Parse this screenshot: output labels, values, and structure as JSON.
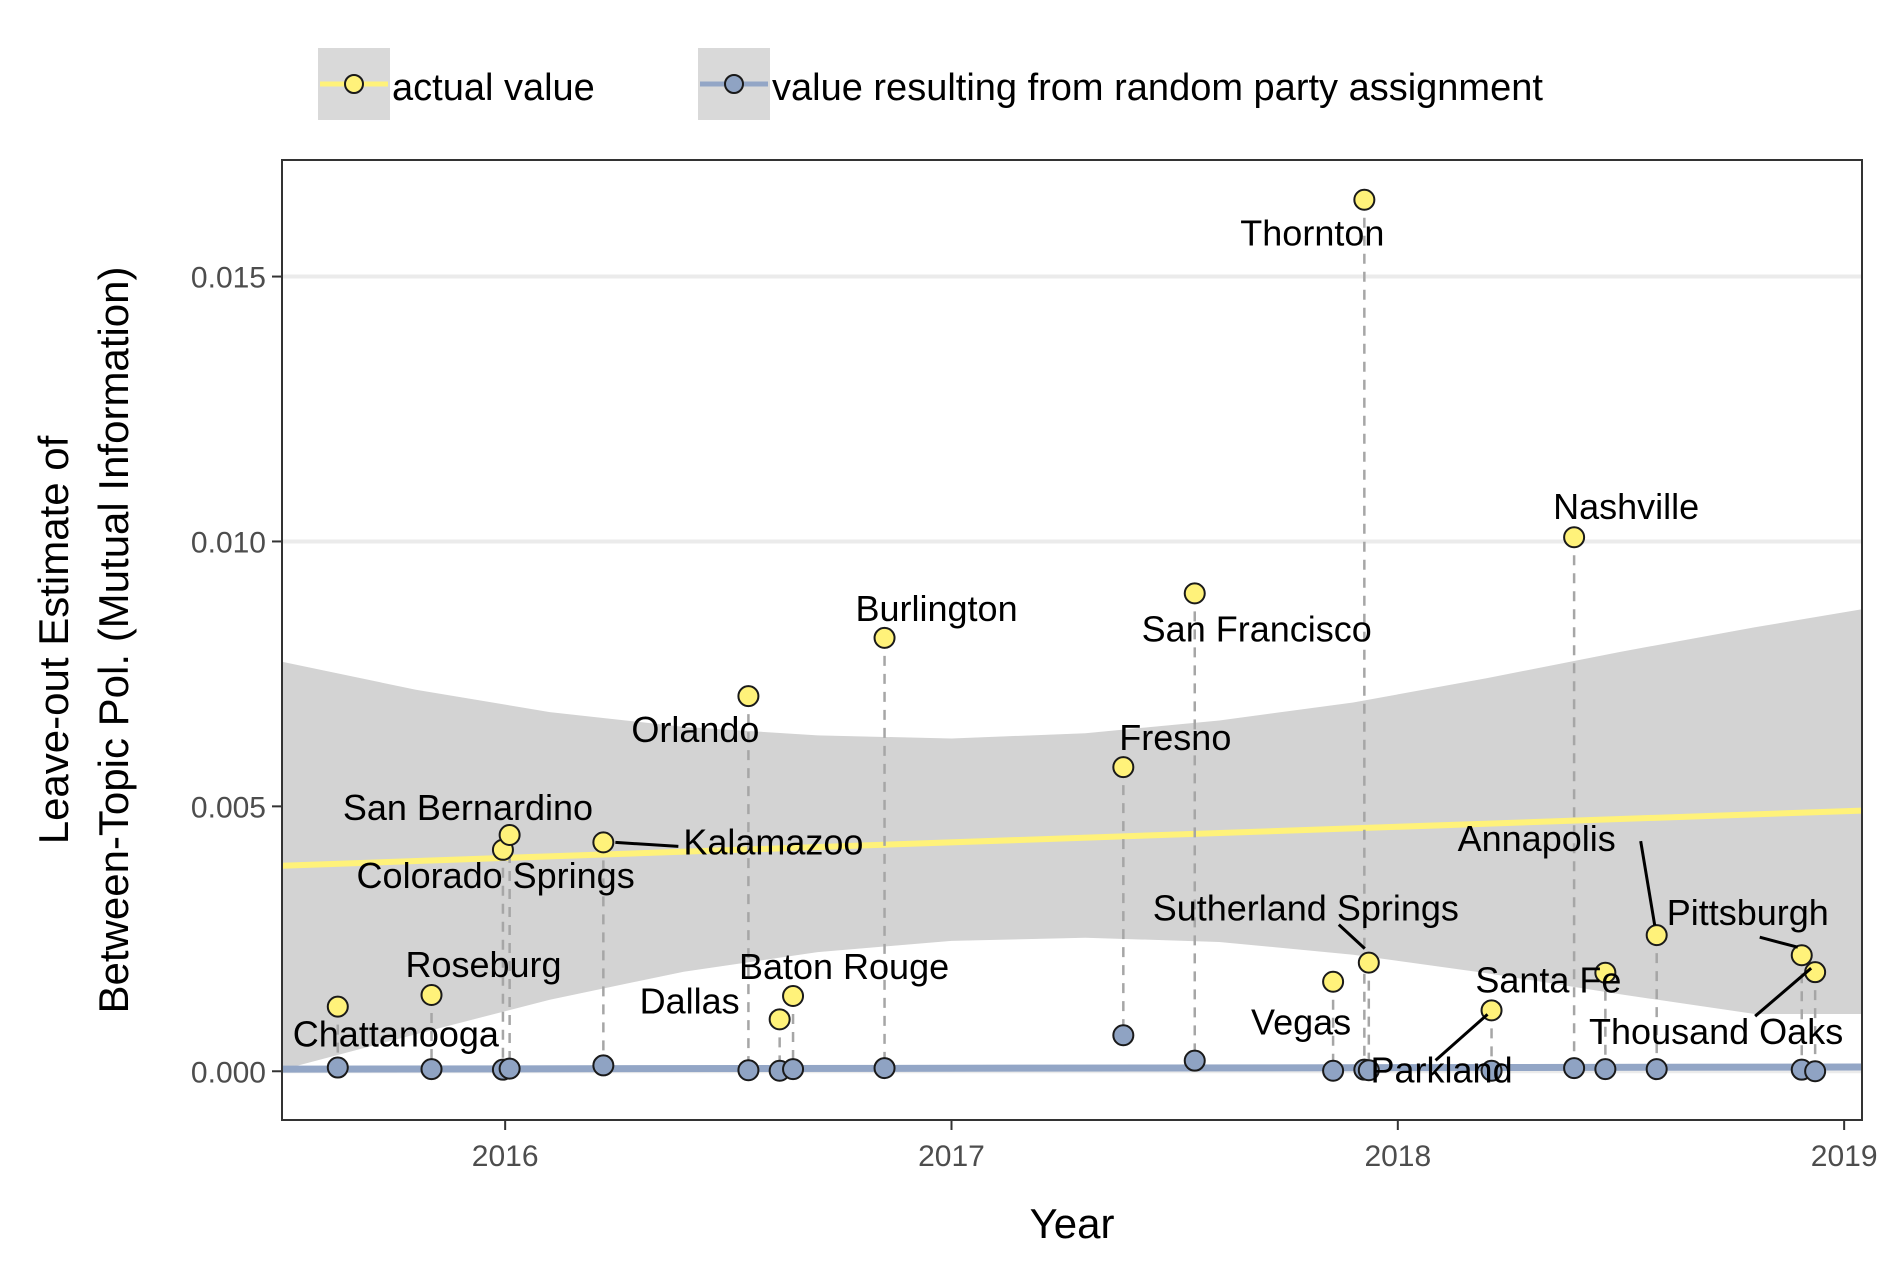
{
  "chart_data": {
    "type": "scatter",
    "title": "",
    "xlabel": "Year",
    "ylabel_lines": [
      "Leave-out Estimate of",
      "Between-Topic Pol. (Mutual Information)"
    ],
    "xlim": [
      2015.5,
      2019.04
    ],
    "ylim": [
      -0.00092,
      0.0172
    ],
    "x_ticks": [
      2016,
      2017,
      2018,
      2019
    ],
    "x_tick_labels": [
      "2016",
      "2017",
      "2018",
      "2019"
    ],
    "y_ticks": [
      0.0,
      0.005,
      0.01,
      0.015
    ],
    "y_tick_labels": [
      "0.000",
      "0.005",
      "0.010",
      "0.015"
    ],
    "grid": true,
    "legend_position": "top",
    "series": [
      {
        "name": "actual value",
        "color": "#fff27a",
        "line_color": "#fff27a"
      },
      {
        "name": "value resulting from random party assignment",
        "color": "#8fa3c3",
        "line_color": "#93a6c6"
      }
    ],
    "events": [
      {
        "label": "Chattanooga",
        "x": 2015.625,
        "actual": 0.00122,
        "random": 7e-05
      },
      {
        "label": "Roseburg",
        "x": 2015.835,
        "actual": 0.00144,
        "random": 4e-05
      },
      {
        "label": "San Bernardino",
        "x": 2015.995,
        "actual": 0.00418,
        "random": 3e-05
      },
      {
        "label": "Colorado Springs",
        "x": 2016.01,
        "actual": 0.00446,
        "random": 5e-05
      },
      {
        "label": "Kalamazoo",
        "x": 2016.22,
        "actual": 0.00432,
        "random": 0.00011
      },
      {
        "label": "Orlando",
        "x": 2016.545,
        "actual": 0.00708,
        "random": 2e-05
      },
      {
        "label": "Dallas",
        "x": 2016.615,
        "actual": 0.00098,
        "random": 1e-05
      },
      {
        "label": "Baton Rouge",
        "x": 2016.645,
        "actual": 0.00142,
        "random": 4e-05
      },
      {
        "label": "Burlington",
        "x": 2016.85,
        "actual": 0.00818,
        "random": 6e-05
      },
      {
        "label": "Fresno",
        "x": 2017.385,
        "actual": 0.00574,
        "random": 0.00068
      },
      {
        "label": "San Francisco",
        "x": 2017.545,
        "actual": 0.00902,
        "random": 0.0002
      },
      {
        "label": "Vegas",
        "x": 2017.855,
        "actual": 0.00169,
        "random": 1e-05
      },
      {
        "label": "Thornton",
        "x": 2017.925,
        "actual": 0.01645,
        "random": 3e-05
      },
      {
        "label": "Sutherland Springs",
        "x": 2017.935,
        "actual": 0.00205,
        "random": 2e-05
      },
      {
        "label": "Parkland",
        "x": 2018.21,
        "actual": 0.00115,
        "random": 1e-05
      },
      {
        "label": "Nashville",
        "x": 2018.395,
        "actual": 0.01008,
        "random": 6e-05
      },
      {
        "label": "Santa Fe",
        "x": 2018.465,
        "actual": 0.00186,
        "random": 4e-05
      },
      {
        "label": "Annapolis",
        "x": 2018.58,
        "actual": 0.00257,
        "random": 4e-05
      },
      {
        "label": "Pittsburgh",
        "x": 2018.905,
        "actual": 0.00219,
        "random": 3e-05
      },
      {
        "label": "Thousand Oaks",
        "x": 2018.935,
        "actual": 0.00187,
        "random": 0.0
      }
    ],
    "trend_actual": {
      "x": [
        2015.5,
        2019.04
      ],
      "y": [
        0.00388,
        0.00492
      ]
    },
    "trend_random": {
      "x": [
        2015.5,
        2019.04
      ],
      "y": [
        4e-05,
        8e-05
      ]
    },
    "ribbon": {
      "x": [
        2015.5,
        2015.8,
        2016.1,
        2016.4,
        2016.7,
        2017.0,
        2017.3,
        2017.6,
        2017.9,
        2018.2,
        2018.5,
        2018.8,
        2019.04
      ],
      "upper": [
        0.00773,
        0.0072,
        0.00678,
        0.0065,
        0.00634,
        0.00628,
        0.00638,
        0.00662,
        0.00696,
        0.00742,
        0.00792,
        0.00838,
        0.00872
      ],
      "lower": [
        3e-05,
        0.0007,
        0.00135,
        0.00188,
        0.00225,
        0.00246,
        0.00252,
        0.00244,
        0.0022,
        0.00185,
        0.00145,
        0.00108,
        0.00108
      ]
    }
  }
}
